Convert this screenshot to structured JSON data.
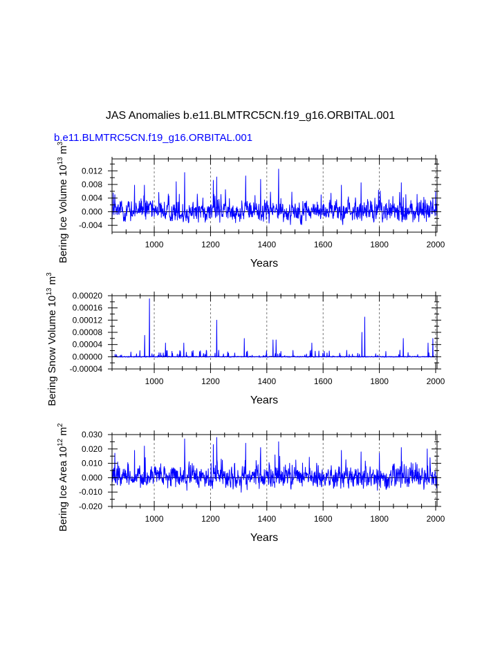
{
  "page": {
    "title": "JAS Anomalies b.e11.BLMTRC5CN.f19_g16.ORBITAL.001",
    "case_label": "b.e11.BLMTRC5CN.f19_g16.ORBITAL.001"
  },
  "colors": {
    "series": "#0000ff",
    "axis": "#000000",
    "grid": "#555555"
  },
  "chart_data": [
    {
      "type": "line",
      "panel": "ice-volume",
      "ylabel": "Bering Ice Volume",
      "yunits_base": "10",
      "yunits_exp": "13",
      "yunits_unit": "m",
      "yunits_unit_exp": "3",
      "xlabel": "Years",
      "xlim": [
        850,
        2005
      ],
      "ylim": [
        -0.006,
        0.0155
      ],
      "xticks": [
        1000,
        1200,
        1400,
        1600,
        1800,
        2000
      ],
      "xtick_labels": [
        "1000",
        "1200",
        "1400",
        "1600",
        "1800",
        "2000"
      ],
      "yticks": [
        -0.004,
        0.0,
        0.004,
        0.008,
        0.012
      ],
      "ytick_labels": [
        "-0.004",
        "0.000",
        "0.004",
        "0.008",
        "0.012"
      ],
      "vgrid": [
        1000,
        1200,
        1400,
        1600,
        1800,
        2000
      ],
      "series_name": "Bering Ice Volume",
      "peaks": [
        [
          1108,
          0.0115
        ],
        [
          1442,
          0.0125
        ],
        [
          1325,
          0.0105
        ],
        [
          1222,
          0.0102
        ],
        [
          1378,
          0.0095
        ],
        [
          1210,
          0.0092
        ],
        [
          1078,
          0.0088
        ],
        [
          1735,
          0.0085
        ],
        [
          1878,
          0.0085
        ],
        [
          930,
          0.0078
        ],
        [
          965,
          0.0078
        ],
        [
          1665,
          0.0078
        ],
        [
          2000,
          0.006
        ],
        [
          860,
          0.005
        ]
      ]
    },
    {
      "type": "line",
      "panel": "snow-volume",
      "ylabel": "Bering Snow Volume",
      "yunits_base": "10",
      "yunits_exp": "13",
      "yunits_unit": "m",
      "yunits_unit_exp": "3",
      "xlabel": "Years",
      "xlim": [
        850,
        2005
      ],
      "ylim": [
        -4e-05,
        0.0002
      ],
      "xticks": [
        1000,
        1200,
        1400,
        1600,
        1800,
        2000
      ],
      "xtick_labels": [
        "1000",
        "1200",
        "1400",
        "1600",
        "1800",
        "2000"
      ],
      "yticks": [
        -4e-05,
        0.0,
        4e-05,
        8e-05,
        0.00012,
        0.00016,
        0.0002
      ],
      "ytick_labels": [
        "-0.00004",
        "0.00000",
        "0.00004",
        "0.00008",
        "0.00012",
        "0.00016",
        "0.00020"
      ],
      "vgrid": [
        1000,
        1200,
        1400,
        1600,
        1800,
        2000
      ],
      "series_name": "Bering Snow Volume",
      "peaks": [
        [
          983,
          0.00019
        ],
        [
          1222,
          0.00012
        ],
        [
          1748,
          0.00013
        ],
        [
          1738,
          8e-05
        ],
        [
          966,
          7e-05
        ],
        [
          1320,
          6e-05
        ],
        [
          1885,
          6e-05
        ],
        [
          1990,
          6e-05
        ],
        [
          1422,
          5.5e-05
        ],
        [
          1433,
          5.5e-05
        ],
        [
          1973,
          4.5e-05
        ],
        [
          1040,
          4.5e-05
        ],
        [
          1105,
          4.5e-05
        ],
        [
          1560,
          4.5e-05
        ]
      ]
    },
    {
      "type": "line",
      "panel": "ice-area",
      "ylabel": "Bering Ice Area",
      "yunits_base": "10",
      "yunits_exp": "12",
      "yunits_unit": "m",
      "yunits_unit_exp": "2",
      "xlabel": "Years",
      "xlim": [
        850,
        2005
      ],
      "ylim": [
        -0.02,
        0.03
      ],
      "xticks": [
        1000,
        1200,
        1400,
        1600,
        1800,
        2000
      ],
      "xtick_labels": [
        "1000",
        "1200",
        "1400",
        "1600",
        "1800",
        "2000"
      ],
      "yticks": [
        -0.02,
        -0.01,
        0.0,
        0.01,
        0.02,
        0.03
      ],
      "ytick_labels": [
        "-0.020",
        "-0.010",
        "0.000",
        "0.010",
        "0.020",
        "0.030"
      ],
      "vgrid": [
        1000,
        1200,
        1400,
        1600,
        1800,
        2000
      ],
      "series_name": "Bering Ice Area",
      "peaks": [
        [
          1222,
          0.028
        ],
        [
          1108,
          0.027
        ],
        [
          1442,
          0.025
        ],
        [
          1325,
          0.024
        ],
        [
          1210,
          0.023
        ],
        [
          965,
          0.022
        ],
        [
          1378,
          0.021
        ],
        [
          1878,
          0.021
        ],
        [
          1970,
          0.02
        ],
        [
          930,
          0.019
        ],
        [
          1735,
          0.018
        ],
        [
          1665,
          0.019
        ],
        [
          860,
          0.017
        ]
      ]
    }
  ]
}
